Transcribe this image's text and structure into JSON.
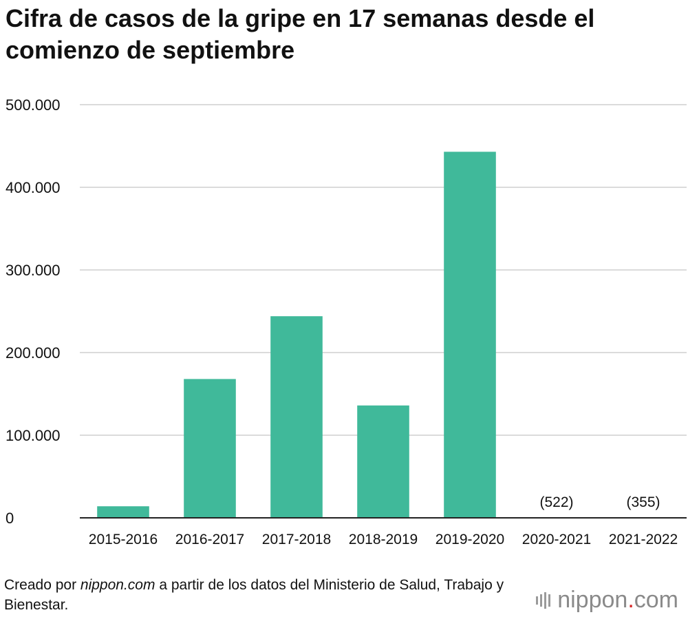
{
  "title": "Cifra de casos de la gripe en 17 semanas desde el comienzo de septiembre",
  "footer": {
    "prefix": "Creado por ",
    "source_name": "nippon.com",
    "suffix": " a partir de los datos del Ministerio de Salud, Trabajo y Bienestar."
  },
  "logo": {
    "name": "nippon",
    "dot": ".",
    "tld": "com"
  },
  "colors": {
    "bar": "#40b99a",
    "grid": "#cfcfcf",
    "axis": "#222222",
    "text": "#111111"
  },
  "chart_data": {
    "type": "bar",
    "title": "Cifra de casos de la gripe en 17 semanas desde el comienzo de septiembre",
    "xlabel": "",
    "ylabel": "",
    "categories": [
      "2015-2016",
      "2016-2017",
      "2017-2018",
      "2018-2019",
      "2019-2020",
      "2020-2021",
      "2021-2022"
    ],
    "values": [
      14000,
      168000,
      244000,
      136000,
      443000,
      522,
      355
    ],
    "data_labels": [
      "",
      "",
      "",
      "",
      "",
      "(522)",
      "(355)"
    ],
    "ylim": [
      0,
      500000
    ],
    "yticks": [
      0,
      100000,
      200000,
      300000,
      400000,
      500000
    ],
    "ytick_labels": [
      "0",
      "100.000",
      "200.000",
      "300.000",
      "400.000",
      "500.000"
    ],
    "grid": true,
    "legend": "none"
  }
}
